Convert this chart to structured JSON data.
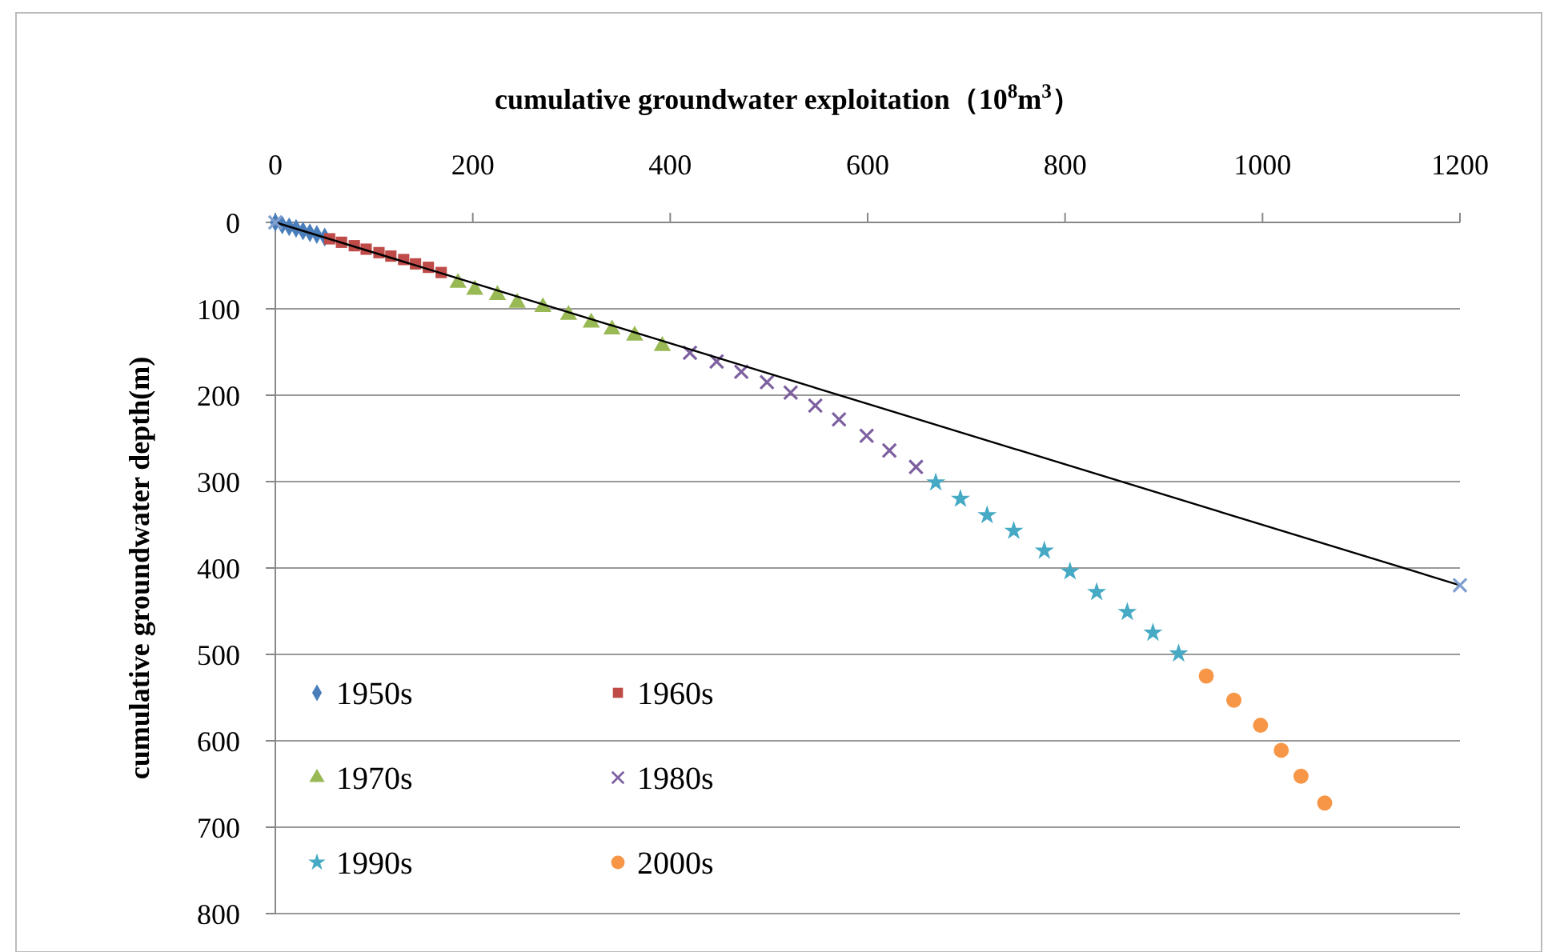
{
  "chart_data": {
    "type": "scatter",
    "xlabel": "cumulative groundwater exploitation（10$^{8}$m$^{3}$）",
    "ylabel": "cumulative groundwater depth(m)",
    "xlim": [
      0,
      1200
    ],
    "xticks": [
      0,
      200,
      400,
      600,
      800,
      1000,
      1200
    ],
    "ylim": [
      800,
      0
    ],
    "yticks": [
      0,
      100,
      200,
      300,
      400,
      500,
      600,
      700,
      800
    ],
    "grid": "y",
    "legend": "bottom left",
    "series": [
      {
        "name": "1950s",
        "color": "#4a7ebb",
        "marker": "diamond",
        "x": [
          0,
          7,
          14,
          21,
          28,
          35,
          42,
          50
        ],
        "values": [
          0,
          3,
          5,
          7,
          10,
          12,
          14,
          17
        ]
      },
      {
        "name": "1960s",
        "color": "#be4b48",
        "marker": "square",
        "x": [
          55,
          67,
          80,
          92,
          105,
          117,
          130,
          142,
          155,
          168
        ],
        "values": [
          19,
          23,
          27,
          31,
          35,
          39,
          43,
          48,
          52,
          58
        ]
      },
      {
        "name": "1970s",
        "color": "#98b954",
        "marker": "triangle",
        "x": [
          185,
          202,
          225,
          245,
          271,
          297,
          320,
          341,
          364,
          392
        ],
        "values": [
          70,
          78,
          84,
          93,
          98,
          107,
          116,
          124,
          131,
          143
        ]
      },
      {
        "name": "1980s",
        "color": "#7d60a0",
        "marker": "cross",
        "x": [
          420,
          447,
          472,
          498,
          522,
          547,
          571,
          599,
          622,
          649
        ],
        "values": [
          151,
          161,
          173,
          185,
          197,
          212,
          228,
          247,
          264,
          283
        ]
      },
      {
        "name": "1990s",
        "color": "#46aac5",
        "marker": "star",
        "x": [
          669,
          694,
          721,
          748,
          779,
          805,
          832,
          863,
          889,
          915
        ],
        "values": [
          301,
          320,
          339,
          357,
          380,
          404,
          428,
          451,
          475,
          499
        ]
      },
      {
        "name": "2000s",
        "color": "#f79646",
        "marker": "circle",
        "x": [
          943,
          971,
          998,
          1019,
          1039,
          1063
        ],
        "values": [
          525,
          553,
          582,
          611,
          641,
          672
        ]
      },
      {
        "type": "line",
        "color": "#000000",
        "marker": "none",
        "x": [
          0,
          1200
        ],
        "values": [
          0,
          420
        ]
      },
      {
        "color": "#7f9fd0",
        "marker": "cross",
        "x": [
          0,
          1200
        ],
        "values": [
          0,
          420
        ]
      }
    ]
  }
}
